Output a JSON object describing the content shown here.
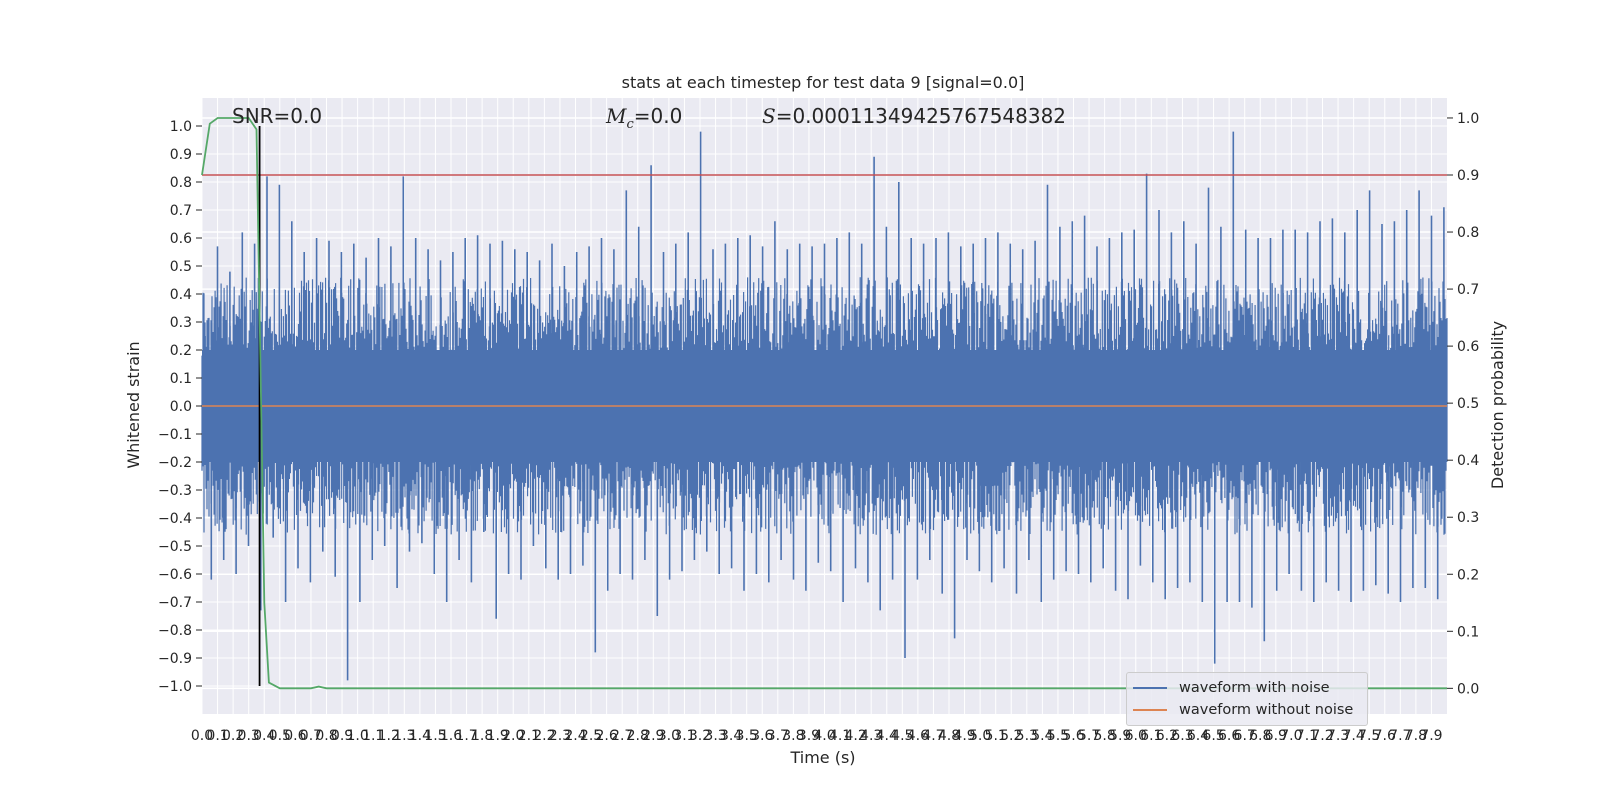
{
  "colors": {
    "figure_background": "#ffffff",
    "axes_background": "#eaeaf2",
    "grid": "#ffffff",
    "waveform_with_noise": "#4c72b0",
    "waveform_without_noise": "#dd8452",
    "detection_probability": "#55a868",
    "threshold": "#c44e52",
    "event_marker": "#000000",
    "text": "#262626"
  },
  "annotations": {
    "snr": "SNR=0.0",
    "mc_symbol": "M",
    "mc_subscript": "c",
    "mc_value": "=0.0",
    "s_symbol": "S",
    "s_value": "=0.00011349425767548382"
  },
  "legend": {
    "placement": "lower right",
    "items": [
      {
        "label": "waveform with noise",
        "color": "#4c72b0"
      },
      {
        "label": "waveform without noise",
        "color": "#dd8452"
      }
    ]
  },
  "chart_data": {
    "type": "line",
    "title": "stats at each timestep for test data 9 [signal=0.0]",
    "xlabel": "Time (s)",
    "ylabel": "Whitened strain",
    "y2label": "Detection probability",
    "xlim": [
      0.0,
      8.0
    ],
    "ylim": [
      -1.1,
      1.1
    ],
    "y2lim": [
      -0.045,
      1.035
    ],
    "grid": true,
    "x_ticks": [
      0.0,
      0.1,
      0.2,
      0.3,
      0.4,
      0.5,
      0.6,
      0.7,
      0.8,
      0.9,
      1.0,
      1.1,
      1.2,
      1.3,
      1.4,
      1.5,
      1.6,
      1.7,
      1.8,
      1.9,
      2.0,
      2.1,
      2.2,
      2.3,
      2.4,
      2.5,
      2.6,
      2.7,
      2.8,
      2.9,
      3.0,
      3.1,
      3.2,
      3.3,
      3.4,
      3.5,
      3.6,
      3.7,
      3.8,
      3.9,
      4.0,
      4.1,
      4.2,
      4.3,
      4.4,
      4.5,
      4.6,
      4.7,
      4.8,
      4.9,
      5.0,
      5.1,
      5.2,
      5.3,
      5.4,
      5.5,
      5.6,
      5.7,
      5.8,
      5.9,
      6.0,
      6.1,
      6.2,
      6.3,
      6.4,
      6.5,
      6.6,
      6.7,
      6.8,
      6.9,
      7.0,
      7.1,
      7.2,
      7.3,
      7.4,
      7.5,
      7.6,
      7.7,
      7.8,
      7.9
    ],
    "y_ticks": [
      1.0,
      0.9,
      0.8,
      0.7,
      0.6,
      0.5,
      0.4,
      0.3,
      0.2,
      0.1,
      0.0,
      -0.1,
      -0.2,
      -0.3,
      -0.4,
      -0.5,
      -0.6,
      -0.7,
      -0.8,
      -0.9,
      -1.0
    ],
    "y2_ticks": [
      1.0,
      0.9,
      0.8,
      0.7,
      0.6,
      0.5,
      0.4,
      0.3,
      0.2,
      0.1,
      0.0
    ],
    "series": [
      {
        "name": "waveform with noise",
        "axis": "left",
        "style": "dense noise, approx. ±0.4 amplitude with spikes to ±1.0",
        "values": [
          0.25,
          -0.62,
          0.57,
          -0.55,
          0.48,
          -0.6,
          0.62,
          -0.5,
          0.58,
          -0.73,
          0.82,
          -0.47,
          0.79,
          -0.7,
          0.66,
          -0.58,
          0.55,
          -0.63,
          0.6,
          -0.52,
          0.59,
          -0.61,
          0.55,
          -0.98,
          0.58,
          -0.7,
          0.53,
          -0.55,
          0.6,
          -0.5,
          0.57,
          -0.65,
          0.82,
          -0.52,
          0.6,
          -0.49,
          0.56,
          -0.6,
          0.52,
          -0.7,
          0.55,
          -0.55,
          0.6,
          -0.63,
          0.61,
          -0.45,
          0.58,
          -0.76,
          0.59,
          -0.6,
          0.56,
          -0.62,
          0.55,
          -0.5,
          0.52,
          -0.58,
          0.58,
          -0.62,
          0.5,
          -0.6,
          0.55,
          -0.57,
          0.57,
          -0.88,
          0.6,
          -0.66,
          0.56,
          -0.6,
          0.77,
          -0.62,
          0.64,
          -0.55,
          0.86,
          -0.75,
          0.55,
          -0.62,
          0.58,
          -0.59,
          0.62,
          -0.55,
          0.98,
          -0.52,
          0.56,
          -0.6,
          0.58,
          -0.58,
          0.6,
          -0.66,
          0.61,
          -0.6,
          0.57,
          -0.63,
          0.66,
          -0.55,
          0.56,
          -0.62,
          0.58,
          -0.66,
          0.57,
          -0.56,
          0.58,
          -0.59,
          0.6,
          -0.7,
          0.62,
          -0.58,
          0.58,
          -0.63,
          0.89,
          -0.73,
          0.64,
          -0.62,
          0.8,
          -0.9,
          0.6,
          -0.62,
          0.58,
          -0.55,
          0.6,
          -0.67,
          0.62,
          -0.83,
          0.57,
          -0.55,
          0.58,
          -0.59,
          0.6,
          -0.63,
          0.62,
          -0.58,
          0.58,
          -0.67,
          0.56,
          -0.55,
          0.59,
          -0.7,
          0.79,
          -0.62,
          0.64,
          -0.59,
          0.66,
          -0.6,
          0.68,
          -0.63,
          0.57,
          -0.58,
          0.6,
          -0.66,
          0.62,
          -0.69,
          0.63,
          -0.57,
          0.83,
          -0.63,
          0.7,
          -0.69,
          0.62,
          -0.65,
          0.66,
          -0.63,
          0.58,
          -0.7,
          0.78,
          -0.92,
          0.64,
          -0.7,
          0.98,
          -0.7,
          0.63,
          -0.72,
          0.6,
          -0.84,
          0.6,
          -0.66,
          0.63,
          -0.6,
          0.63,
          -0.66,
          0.62,
          -0.7,
          0.66,
          -0.63,
          0.67,
          -0.66,
          0.62,
          -0.7,
          0.7,
          -0.66,
          0.77,
          -0.64,
          0.65,
          -0.67,
          0.66,
          -0.7,
          0.7,
          -0.65,
          0.77,
          -0.65,
          0.68,
          -0.69,
          0.71
        ]
      },
      {
        "name": "waveform without noise",
        "axis": "left",
        "values": [
          0.0,
          0.0
        ]
      },
      {
        "name": "",
        "axis": "right",
        "x": [
          0.0,
          0.05,
          0.1,
          0.2,
          0.3,
          0.35,
          0.38,
          0.4,
          0.43,
          0.5,
          0.6,
          0.7,
          0.75,
          0.8,
          1.0,
          2.0,
          3.0,
          4.0,
          5.0,
          6.0,
          7.0,
          8.0
        ],
        "values": [
          0.9,
          0.99,
          1.0,
          1.0,
          1.0,
          0.98,
          0.5,
          0.15,
          0.01,
          0.0,
          0.0,
          0.0,
          0.003,
          0.0,
          0.0,
          0.0,
          0.0,
          0.0,
          0.0,
          0.0,
          0.0,
          0.0
        ]
      }
    ],
    "hlines": [
      {
        "axis": "right",
        "y": 0.9,
        "color": "#c44e52"
      }
    ],
    "vlines": [
      {
        "axis": "left",
        "x": 0.37,
        "ymin": -1.0,
        "ymax": 1.0,
        "color": "#000000"
      }
    ]
  }
}
